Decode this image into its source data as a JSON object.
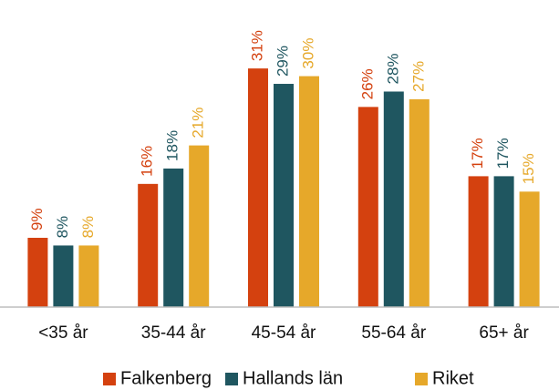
{
  "chart_data": {
    "type": "bar",
    "categories": [
      "<35 år",
      "35-44 år",
      "45-54 år",
      "55-64 år",
      "65+ år"
    ],
    "series": [
      {
        "name": "Falkenberg",
        "color": "#d4410f",
        "values": [
          9,
          16,
          31,
          26,
          17
        ],
        "value_labels": [
          "9%",
          "16%",
          "31%",
          "26%",
          "17%"
        ]
      },
      {
        "name": "Hallands län",
        "color": "#1f5660",
        "values": [
          8,
          18,
          29,
          28,
          17
        ],
        "value_labels": [
          "8%",
          "18%",
          "29%",
          "28%",
          "17%"
        ]
      },
      {
        "name": "Riket",
        "color": "#e6a82a",
        "values": [
          8,
          21,
          30,
          27,
          15
        ],
        "value_labels": [
          "8%",
          "21%",
          "30%",
          "27%",
          "15%"
        ]
      }
    ],
    "ylim": [
      0,
      38
    ]
  }
}
